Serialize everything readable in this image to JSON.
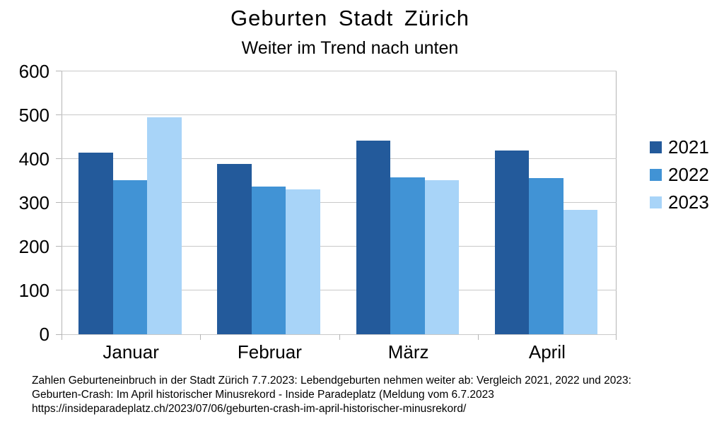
{
  "chart_data": {
    "type": "bar",
    "title": "Geburten Stadt Zürich",
    "subtitle": "Weiter im Trend nach unten",
    "categories": [
      "Januar",
      "Februar",
      "März",
      "April"
    ],
    "series": [
      {
        "name": "2021",
        "color": "#235a9b",
        "values": [
          414,
          388,
          442,
          419
        ]
      },
      {
        "name": "2022",
        "color": "#4193d5",
        "values": [
          351,
          337,
          358,
          357
        ]
      },
      {
        "name": "2023",
        "color": "#a8d4f8",
        "values": [
          495,
          331,
          352,
          284
        ]
      }
    ],
    "ylim": [
      0,
      600
    ],
    "ytick_interval": 100,
    "yticks": [
      0,
      100,
      200,
      300,
      400,
      500,
      600
    ],
    "grid": true,
    "legend_position": "right",
    "grid_color": "#c9c9c9",
    "axis_color": "#b5b5b5"
  },
  "caption": {
    "line1": "Zahlen Geburteneinbruch in der Stadt Zürich 7.7.2023: Lebendgeburten nehmen weiter ab: Vergleich 2021, 2022 und 2023:",
    "line2": "Geburten-Crash: Im April historischer Minusrekord - Inside Paradeplatz (Meldung vom 6.7.2023",
    "line3": "https://insideparadeplatz.ch/2023/07/06/geburten-crash-im-april-historischer-minusrekord/"
  }
}
